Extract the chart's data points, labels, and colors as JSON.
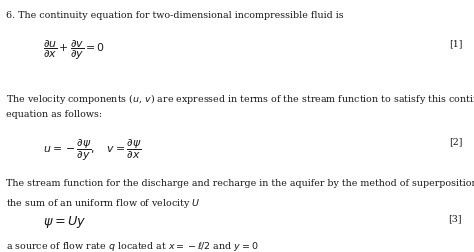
{
  "background_color": "#ffffff",
  "text_color": "#1a1a1a",
  "fig_width": 4.74,
  "fig_height": 2.52,
  "dpi": 100,
  "line1": "6. The continuity equation for two-dimensional incompressible fluid is",
  "eq1": "$\\dfrac{\\partial u}{\\partial x}+\\dfrac{\\partial v}{\\partial y}=0$",
  "eq1_label": "[1]",
  "line2": "The velocity components ($u$, $v$) are expressed in terms of the stream function to satisfy this continuity",
  "line3": "equation as follows:",
  "eq2": "$u=-\\dfrac{\\partial \\psi}{\\partial y},\\quad v=\\dfrac{\\partial \\psi}{\\partial x}$",
  "eq2_label": "[2]",
  "line4a": "The stream function for the discharge and recharge in the aquifer by the method of superposition is",
  "line4b": "the sum of an uniform flow of velocity $U$",
  "eq3": "$\\psi=Uy$",
  "eq3_label": "[3]",
  "line5": "a source of flow rate $q$ located at $x=-\\ell/2$ and $y=0$",
  "font_size_text": 6.8,
  "font_size_eq": 7.8,
  "font_size_label": 6.8
}
